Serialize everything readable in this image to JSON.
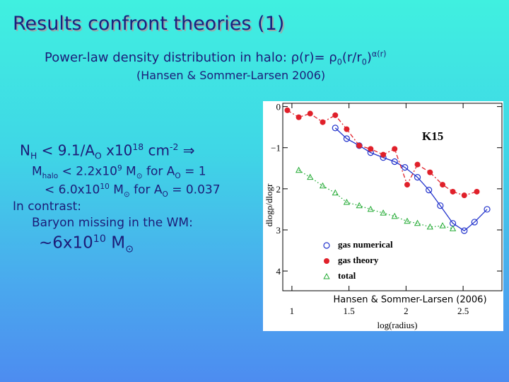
{
  "slide": {
    "title": "Results confront theories (1)",
    "subtitle": [
      "Power-law density distribution in halo: ρ(r)= ρ",
      "0",
      "(r/r",
      "0",
      ")",
      "α(r)"
    ],
    "reference": "(Hansen & Sommer-Larsen 2006)",
    "limit": [
      "N",
      "H",
      " < 9.1/A",
      "O",
      " x10",
      "18",
      " cm",
      "-2",
      " ⇒"
    ],
    "mass_1": [
      "M",
      "halo",
      " < 2.2x10",
      "9",
      " M",
      "⊙",
      " for A",
      "O",
      " = 1"
    ],
    "mass_2": [
      "< 6.0x10",
      "10",
      " M",
      "⊙",
      " for A",
      "O",
      " = 0.037"
    ],
    "contrast": "In contrast:",
    "missing": "Baryon missing in the WM:",
    "missing_mass": [
      "~6x10",
      "10",
      " M",
      "⊙"
    ]
  },
  "chart_data": {
    "type": "line",
    "label": "K15",
    "caption": "Hansen & Sommer-Larsen (2006)",
    "x_label": "log(radius)",
    "y_label": "dlogρ/dlogr",
    "xlim": [
      0.92,
      2.84
    ],
    "ylim": [
      -4.48,
      0.08
    ],
    "xticks": [
      1,
      1.5,
      2,
      2.5
    ],
    "yticks": [
      0,
      {
        "value": -1,
        "label": "−1"
      },
      {
        "value": -2,
        "label": "2"
      },
      {
        "value": -3,
        "label": "3"
      },
      {
        "value": -4,
        "label": "4"
      }
    ],
    "series": [
      {
        "name": "gas numerical",
        "color": "#2233cc",
        "marker": "circle",
        "line_style": "solid",
        "x": [
          1.38,
          1.48,
          1.59,
          1.69,
          1.8,
          1.9,
          1.99,
          2.1,
          2.2,
          2.3,
          2.41,
          2.51,
          2.6,
          2.71
        ],
        "values": [
          -0.52,
          -0.78,
          -0.95,
          -1.12,
          -1.24,
          -1.34,
          -1.48,
          -1.72,
          -2.03,
          -2.41,
          -2.84,
          -3.02,
          -2.81,
          -2.5
        ]
      },
      {
        "name": "gas theory",
        "color": "#e0202a",
        "marker": "dot",
        "line_style": "dashed",
        "x": [
          0.96,
          1.06,
          1.16,
          1.27,
          1.38,
          1.48,
          1.59,
          1.69,
          1.8,
          1.9,
          2.01,
          2.1,
          2.21,
          2.32,
          2.41,
          2.51,
          2.62
        ],
        "values": [
          -0.09,
          -0.26,
          -0.17,
          -0.38,
          -0.21,
          -0.55,
          -0.95,
          -1.03,
          -1.17,
          -1.03,
          -1.9,
          -1.41,
          -1.6,
          -1.9,
          -2.07,
          -2.16,
          -2.07
        ]
      },
      {
        "name": "total",
        "color": "#22aa33",
        "marker": "triangle",
        "line_style": "dotted",
        "x": [
          1.06,
          1.16,
          1.27,
          1.38,
          1.48,
          1.59,
          1.69,
          1.8,
          1.9,
          2.01,
          2.1,
          2.21,
          2.32,
          2.41
        ],
        "values": [
          -1.55,
          -1.72,
          -1.93,
          -2.1,
          -2.33,
          -2.41,
          -2.5,
          -2.59,
          -2.67,
          -2.79,
          -2.84,
          -2.93,
          -2.9,
          -2.97
        ]
      }
    ]
  }
}
